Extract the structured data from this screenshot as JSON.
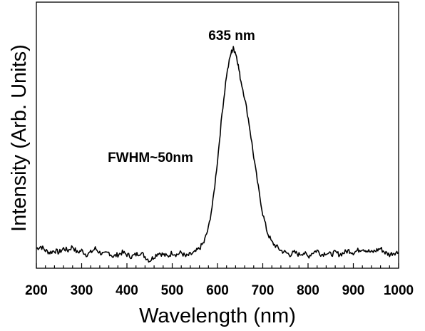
{
  "chart_data": {
    "type": "line",
    "title": "",
    "xlabel": "Wavelength (nm)",
    "ylabel": "Intensity (Arb. Units)",
    "xlim": [
      200,
      1000
    ],
    "ylim": [
      0,
      1.06
    ],
    "x_ticks": [
      200,
      300,
      400,
      500,
      600,
      700,
      800,
      900,
      1000
    ],
    "x_tick_labels": [
      "200",
      "300",
      "400",
      "500",
      "600",
      "700",
      "800",
      "900",
      "1000"
    ],
    "y_ticks_shown": false,
    "grid": false,
    "legend": "none",
    "annotations": [
      {
        "text": "635 nm",
        "x": 640,
        "y": 1.0
      },
      {
        "text": "FWHM~50nm",
        "x": 350,
        "y": 0.52
      }
    ],
    "series": [
      {
        "color": "#000000",
        "x": [
          200,
          210,
          220,
          230,
          240,
          250,
          260,
          270,
          280,
          290,
          300,
          310,
          320,
          330,
          340,
          350,
          360,
          370,
          380,
          390,
          400,
          410,
          420,
          430,
          440,
          450,
          460,
          470,
          480,
          490,
          500,
          510,
          520,
          530,
          540,
          550,
          560,
          570,
          580,
          590,
          600,
          610,
          620,
          630,
          635,
          640,
          645,
          650,
          660,
          670,
          680,
          690,
          700,
          710,
          720,
          730,
          740,
          750,
          760,
          770,
          780,
          790,
          800,
          810,
          820,
          830,
          840,
          850,
          860,
          870,
          880,
          890,
          900,
          910,
          920,
          930,
          940,
          950,
          960,
          970,
          980,
          990,
          1000
        ],
        "y": [
          0.02,
          0.03,
          0.01,
          0.0,
          0.01,
          0.0,
          0.02,
          0.01,
          0.03,
          0.0,
          0.01,
          -0.01,
          0.0,
          0.02,
          0.0,
          -0.01,
          0.0,
          -0.02,
          -0.01,
          0.0,
          -0.01,
          -0.02,
          -0.01,
          0.0,
          -0.02,
          -0.04,
          -0.02,
          0.0,
          -0.01,
          -0.02,
          0.0,
          -0.01,
          0.0,
          -0.02,
          -0.01,
          0.0,
          0.02,
          0.05,
          0.12,
          0.25,
          0.45,
          0.68,
          0.87,
          0.98,
          1.0,
          0.98,
          0.93,
          0.86,
          0.76,
          0.63,
          0.47,
          0.32,
          0.19,
          0.1,
          0.05,
          0.03,
          0.01,
          0.0,
          -0.01,
          0.0,
          -0.01,
          0.0,
          -0.02,
          0.0,
          0.01,
          -0.01,
          0.0,
          -0.01,
          0.0,
          -0.01,
          0.0,
          0.01,
          0.0,
          0.01,
          0.02,
          0.01,
          0.0,
          0.01,
          0.02,
          0.0,
          -0.01,
          0.0,
          0.0
        ]
      }
    ]
  }
}
